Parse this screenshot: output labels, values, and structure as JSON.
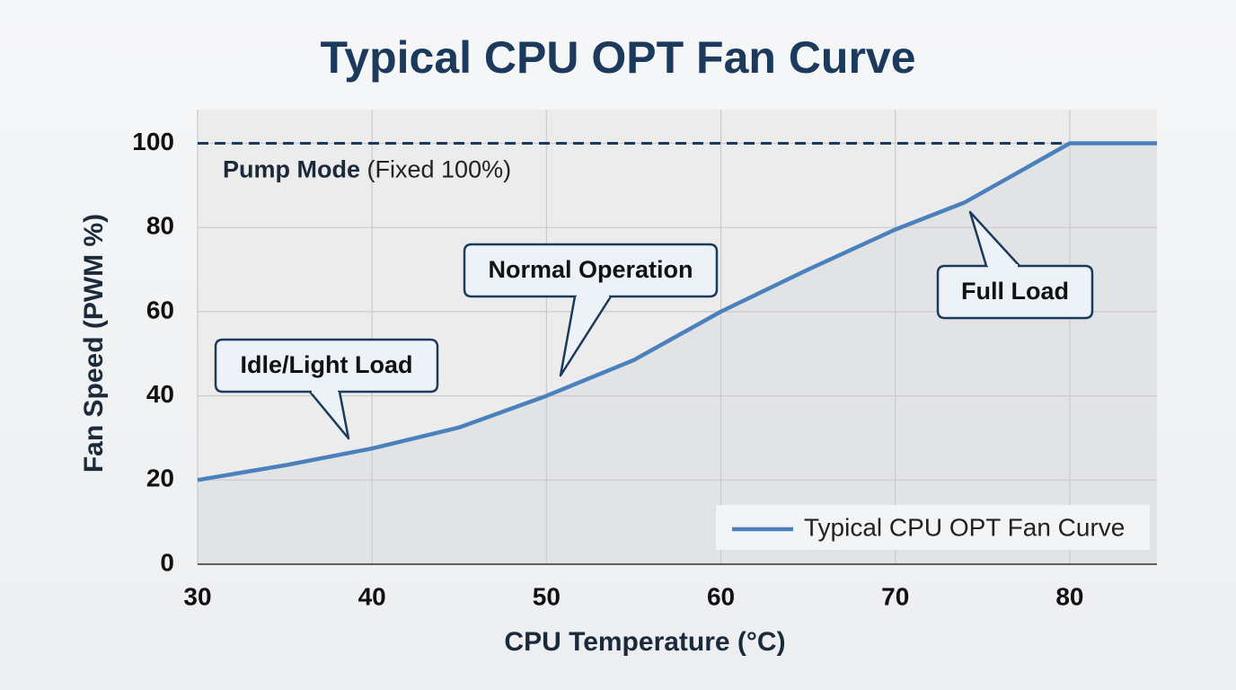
{
  "chart_data": {
    "type": "line",
    "title": "Typical CPU OPT Fan Curve",
    "x_label": "CPU Temperature (°C)",
    "y_label": "Fan Speed (PWM %)",
    "x": [
      30,
      35,
      40,
      45,
      50,
      55,
      60,
      65,
      70,
      74,
      77,
      80,
      85
    ],
    "series": [
      {
        "name": "Typical CPU OPT Fan Curve",
        "color": "#4a80bb",
        "values": [
          20,
          23.5,
          27.5,
          32.5,
          40,
          48.5,
          60,
          70,
          79.5,
          86,
          93,
          100,
          100
        ]
      }
    ],
    "xlim": [
      30,
      85
    ],
    "xticks": [
      30,
      40,
      50,
      60,
      70,
      80
    ],
    "ylim": [
      0,
      108
    ],
    "yticks": [
      0,
      20,
      40,
      60,
      80,
      100
    ],
    "grid": true,
    "legend": "lower right",
    "reference_line": {
      "value": 100,
      "color": "#1b3a5c",
      "label": "Pump Mode",
      "note": "(Fixed 100%)"
    },
    "annotations": [
      "Idle/Light Load",
      "Normal Operation",
      "Full Load"
    ]
  }
}
